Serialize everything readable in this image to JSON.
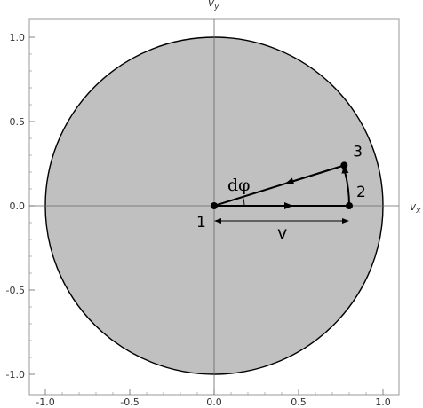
{
  "axes": {
    "x_label": "v",
    "x_sub": "x",
    "y_label": "v",
    "y_sub": "y",
    "x_range": [
      -1.05,
      1.05
    ],
    "y_range": [
      -1.05,
      1.05
    ],
    "x_ticks": [
      {
        "value": -1.0,
        "label": "-1.0"
      },
      {
        "value": -0.5,
        "label": "-0.5"
      },
      {
        "value": 0.0,
        "label": "0.0"
      },
      {
        "value": 0.5,
        "label": "0.5"
      },
      {
        "value": 1.0,
        "label": "1.0"
      }
    ],
    "y_ticks": [
      {
        "value": 1.0,
        "label": "1.0"
      },
      {
        "value": 0.5,
        "label": "0.5"
      },
      {
        "value": 0.0,
        "label": "0.0"
      },
      {
        "value": -0.5,
        "label": "-0.5"
      },
      {
        "value": -1.0,
        "label": "-1.0"
      }
    ]
  },
  "disk": {
    "radius": 1.0,
    "fill": "#c0c0c0",
    "stroke": "#000000"
  },
  "points": [
    {
      "id": "1",
      "label": "1",
      "x": 0.0,
      "y": 0.0
    },
    {
      "id": "2",
      "label": "2",
      "x": 0.8,
      "y": 0.0
    },
    {
      "id": "3",
      "label": "3",
      "x": 0.77,
      "y": 0.24
    }
  ],
  "annotations": {
    "angle_label": "dφ",
    "length_label": "v"
  }
}
